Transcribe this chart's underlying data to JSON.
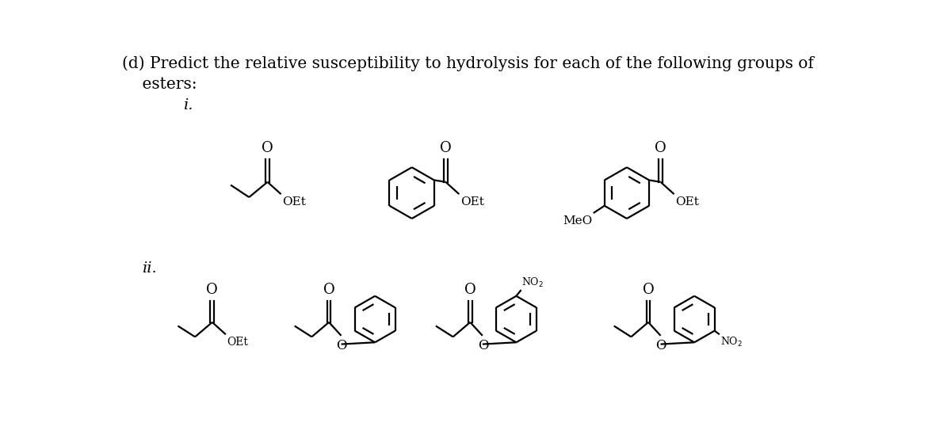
{
  "title_line1": "(d) Predict the relative susceptibility to hydrolysis for each of the following groups of",
  "title_line2": "    esters:",
  "label_i": "i.",
  "label_ii": "ii.",
  "bg_color": "#ffffff",
  "text_color": "#000000",
  "line_color": "#000000",
  "font_size_title": 14.5,
  "font_size_label": 14,
  "font_size_chem": 13,
  "font_size_small": 11
}
